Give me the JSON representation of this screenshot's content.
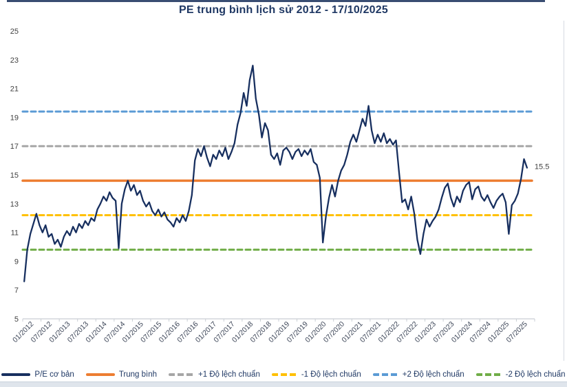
{
  "page": {
    "title": "PE trung bình lịch sử 2012 - 17/10/2025"
  },
  "chart_data": {
    "type": "line",
    "title": "PE trung bình lịch sử 2012 - 17/10/2025",
    "xlabel": "",
    "ylabel": "",
    "ylim": [
      5,
      25
    ],
    "y_ticks": [
      5,
      7,
      9,
      11,
      13,
      15,
      17,
      19,
      21,
      23,
      25
    ],
    "x_tick_labels": [
      "01/2012",
      "07/2012",
      "01/2013",
      "07/2013",
      "01/2014",
      "07/2014",
      "01/2015",
      "07/2015",
      "01/2016",
      "07/2016",
      "01/2017",
      "07/2017",
      "01/2018",
      "07/2018",
      "01/2019",
      "07/2019",
      "01/2020",
      "07/2020",
      "01/2021",
      "07/2021",
      "01/2022",
      "07/2022",
      "01/2023",
      "07/2023",
      "01/2024",
      "07/2024",
      "01/2025",
      "07/2025"
    ],
    "grid": false,
    "legend_position": "bottom",
    "last_value_label": "15.5",
    "series": [
      {
        "name": "P/E cơ bản",
        "color": "#172f5f",
        "start": "01/2012",
        "end": "17/10/2025",
        "frequency": "monthly",
        "values": [
          7.6,
          9.8,
          10.9,
          11.6,
          12.3,
          11.5,
          11.0,
          11.5,
          10.7,
          10.9,
          10.2,
          10.5,
          10.0,
          10.7,
          11.1,
          10.8,
          11.4,
          11.0,
          11.6,
          11.3,
          11.8,
          11.5,
          12.0,
          11.8,
          12.6,
          13.0,
          13.5,
          13.2,
          13.8,
          13.4,
          13.2,
          9.9,
          13.0,
          14.0,
          14.6,
          13.9,
          14.3,
          13.6,
          13.9,
          13.2,
          12.8,
          13.1,
          12.5,
          12.2,
          12.6,
          12.1,
          12.4,
          11.9,
          11.7,
          11.4,
          12.0,
          11.7,
          12.2,
          11.8,
          12.5,
          13.6,
          16.0,
          16.8,
          16.3,
          17.0,
          16.2,
          15.6,
          16.4,
          16.1,
          16.7,
          16.3,
          16.9,
          16.1,
          16.6,
          17.2,
          18.5,
          19.3,
          20.7,
          19.8,
          21.6,
          22.6,
          20.3,
          19.2,
          17.6,
          18.6,
          18.1,
          16.4,
          16.1,
          16.5,
          15.7,
          16.7,
          16.9,
          16.6,
          16.1,
          16.6,
          16.8,
          16.3,
          16.7,
          16.4,
          16.8,
          15.9,
          15.7,
          14.8,
          10.3,
          12.1,
          13.4,
          14.3,
          13.5,
          14.6,
          15.3,
          15.7,
          16.4,
          17.3,
          17.8,
          17.3,
          18.1,
          18.9,
          18.4,
          19.8,
          18.1,
          17.2,
          17.8,
          17.3,
          17.9,
          17.2,
          17.5,
          17.1,
          17.4,
          15.2,
          13.1,
          13.3,
          12.6,
          13.5,
          12.3,
          10.5,
          9.5,
          10.9,
          11.9,
          11.4,
          11.8,
          12.1,
          12.6,
          13.4,
          14.1,
          14.4,
          13.4,
          12.8,
          13.5,
          13.1,
          13.9,
          14.3,
          14.5,
          13.3,
          14.0,
          14.2,
          13.5,
          13.2,
          13.6,
          13.1,
          12.7,
          13.2,
          13.5,
          13.7,
          13.1,
          10.9,
          12.9,
          13.2,
          13.7,
          14.7,
          16.1,
          15.5
        ]
      }
    ],
    "reference_lines": [
      {
        "name": "Trung bình",
        "value": 14.6,
        "color": "#ed7d31",
        "style": "solid"
      },
      {
        "name": "+1 Độ lệch chuẩn",
        "value": 17.0,
        "color": "#a6a6a6",
        "style": "dashed"
      },
      {
        "name": "-1 Độ lệch chuẩn",
        "value": 12.2,
        "color": "#ffc000",
        "style": "dashed"
      },
      {
        "name": "+2 Độ lệch chuẩn",
        "value": 19.4,
        "color": "#5b9bd5",
        "style": "dashed"
      },
      {
        "name": "-2 Độ lệch chuẩn",
        "value": 9.8,
        "color": "#70ad47",
        "style": "dashed"
      }
    ],
    "axis_colors": {
      "tick_text": "#404040",
      "x_label_text": "#3d4658",
      "axis_line": "#c9ced4"
    }
  },
  "legend": {
    "items": [
      {
        "label": "P/E cơ bản",
        "color": "#172f5f",
        "style": "solid"
      },
      {
        "label": "Trung bình",
        "color": "#ed7d31",
        "style": "solid"
      },
      {
        "label": "+1 Độ lệch chuẩn",
        "color": "#a6a6a6",
        "style": "dashed"
      },
      {
        "label": "-1 Độ lệch chuẩn",
        "color": "#ffc000",
        "style": "dashed"
      },
      {
        "label": "+2 Độ lệch chuẩn",
        "color": "#5b9bd5",
        "style": "dashed"
      },
      {
        "label": "-2 Độ lệch chuẩn",
        "color": "#70ad47",
        "style": "dashed"
      }
    ]
  }
}
